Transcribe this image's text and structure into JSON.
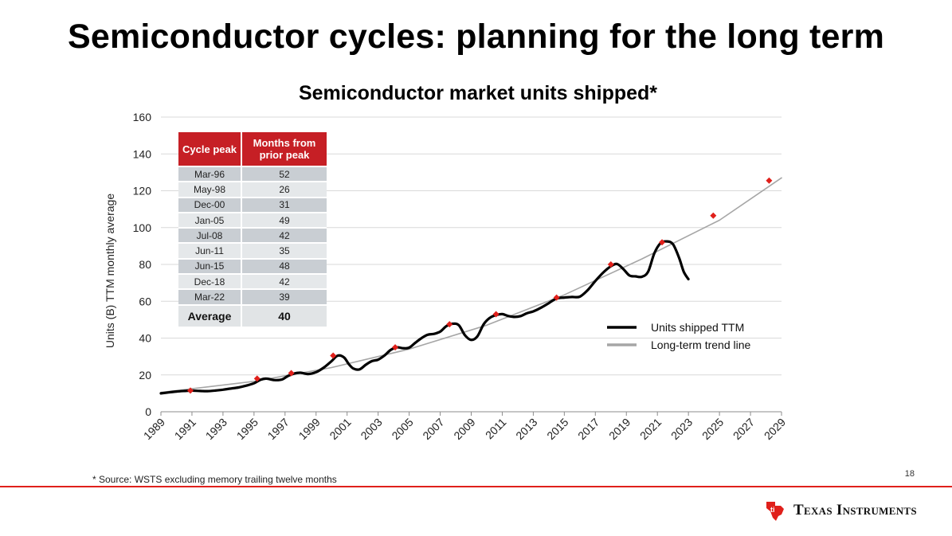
{
  "slide": {
    "title": "Semiconductor cycles: planning for the long term",
    "page_number": "18",
    "source_note": "* Source: WSTS excluding memory trailing twelve months",
    "brand": "Texas Instruments",
    "accent_color": "#e0201b"
  },
  "table": {
    "headers": [
      "Cycle peak",
      "Months from prior peak"
    ],
    "rows": [
      [
        "Mar-96",
        "52"
      ],
      [
        "May-98",
        "26"
      ],
      [
        "Dec-00",
        "31"
      ],
      [
        "Jan-05",
        "49"
      ],
      [
        "Jul-08",
        "42"
      ],
      [
        "Jun-11",
        "35"
      ],
      [
        "Jun-15",
        "48"
      ],
      [
        "Dec-18",
        "42"
      ],
      [
        "Mar-22",
        "39"
      ]
    ],
    "average_label": "Average",
    "average_value": "40",
    "header_color": "#c61f25"
  },
  "chart_data": {
    "type": "line",
    "title": "Semiconductor market units shipped*",
    "ylabel": "Units (B) TTM monthly average",
    "xlabel": "",
    "xlim": [
      1989,
      2029
    ],
    "ylim": [
      0,
      160
    ],
    "yticks": [
      0,
      20,
      40,
      60,
      80,
      100,
      120,
      140,
      160
    ],
    "xticks": [
      1989,
      1991,
      1993,
      1995,
      1997,
      1999,
      2001,
      2003,
      2005,
      2007,
      2009,
      2011,
      2013,
      2015,
      2017,
      2019,
      2021,
      2023,
      2025,
      2027,
      2029
    ],
    "grid": "horizontal",
    "legend_position": "right",
    "series": [
      {
        "name": "Units shipped TTM",
        "color": "#000000",
        "x": [
          1989,
          1989.5,
          1990,
          1990.5,
          1991,
          1991.5,
          1992,
          1992.5,
          1993,
          1993.5,
          1994,
          1994.5,
          1995,
          1995.4,
          1995.8,
          1996.3,
          1996.8,
          1997.2,
          1997.6,
          1998,
          1998.5,
          1999,
          1999.5,
          2000,
          2000.4,
          2000.8,
          2001.1,
          2001.4,
          2001.8,
          2002.2,
          2002.6,
          2003,
          2003.4,
          2003.8,
          2004.2,
          2004.6,
          2005,
          2005.4,
          2005.8,
          2006.2,
          2006.6,
          2007,
          2007.4,
          2007.8,
          2008.2,
          2008.6,
          2009,
          2009.4,
          2009.8,
          2010.2,
          2010.6,
          2011,
          2011.4,
          2011.8,
          2012.2,
          2012.6,
          2013,
          2013.5,
          2014,
          2014.5,
          2015,
          2015.5,
          2016,
          2016.5,
          2017,
          2017.5,
          2018,
          2018.4,
          2018.8,
          2019.2,
          2019.6,
          2020,
          2020.4,
          2020.8,
          2021.2,
          2021.6,
          2022,
          2022.4,
          2022.7,
          2023
        ],
        "y": [
          10,
          10.5,
          11,
          11.3,
          11.5,
          11.3,
          11.2,
          11.5,
          12,
          12.6,
          13.2,
          14.2,
          15.5,
          17.3,
          18,
          17.2,
          17.5,
          19.5,
          20.8,
          21.2,
          20.5,
          21.5,
          24,
          27.5,
          30.5,
          29.5,
          26,
          23.5,
          23,
          25.5,
          27.5,
          28.3,
          30.5,
          33.5,
          35,
          34.5,
          34.8,
          37.5,
          40,
          41.8,
          42.3,
          43.5,
          46.5,
          47.8,
          47,
          41.5,
          39,
          41,
          47.5,
          51,
          52.5,
          53,
          52,
          51.5,
          52,
          53.5,
          54.5,
          56.5,
          59,
          61.5,
          62,
          62.3,
          62.5,
          66,
          71,
          75.5,
          79,
          80.2,
          77.5,
          74,
          73.5,
          73.3,
          76,
          86,
          91.5,
          92.5,
          91,
          83.5,
          76,
          72
        ]
      },
      {
        "name": "Long-term trend line",
        "color": "#a6a6a6",
        "type": "trend",
        "x": [
          1989,
          1995,
          2000,
          2005,
          2010,
          2015,
          2020,
          2025,
          2029
        ],
        "y": [
          10.5,
          16.5,
          24,
          34,
          47,
          63.5,
          83,
          104,
          127
        ]
      }
    ],
    "peak_markers": {
      "color": "#e0201b",
      "x": [
        1990.9,
        1995.2,
        1997.4,
        2000.1,
        2004.1,
        2007.6,
        2010.6,
        2014.5,
        2018.0,
        2021.3,
        2024.6,
        2028.2
      ],
      "y": [
        11.5,
        18.0,
        21.0,
        30.5,
        35.0,
        47.5,
        53.0,
        62.0,
        80.0,
        92.0,
        106.5,
        125.5
      ]
    }
  }
}
